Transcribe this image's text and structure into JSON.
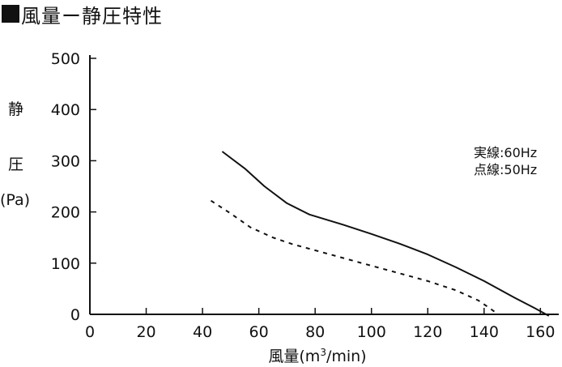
{
  "title": "風量ー静圧特性",
  "chart_data": {
    "type": "line",
    "ylabel": {
      "char1": "静",
      "char2": "圧",
      "unit": "(Pa)"
    },
    "xlabel": {
      "pre": "風量(m",
      "sup": "3",
      "post": "/min)"
    },
    "xlim": [
      0,
      165
    ],
    "ylim": [
      0,
      500
    ],
    "x_ticks": [
      0,
      20,
      40,
      60,
      80,
      100,
      120,
      140,
      160
    ],
    "y_ticks": [
      0,
      100,
      200,
      300,
      400,
      500
    ],
    "legend": [
      "実線:60Hz",
      "点線:50Hz"
    ],
    "series": [
      {
        "name": "実線:60Hz",
        "style": "solid",
        "x": [
          47,
          55,
          62,
          70,
          78,
          90,
          100,
          110,
          120,
          130,
          140,
          150,
          158,
          163
        ],
        "y": [
          318,
          285,
          250,
          217,
          195,
          175,
          157,
          138,
          117,
          92,
          65,
          35,
          12,
          -3
        ]
      },
      {
        "name": "点線:50Hz",
        "style": "dashed",
        "x": [
          43,
          50,
          57,
          65,
          72,
          80,
          90,
          100,
          110,
          120,
          130,
          138,
          142,
          145
        ],
        "y": [
          222,
          197,
          170,
          150,
          137,
          125,
          110,
          95,
          80,
          65,
          47,
          27,
          12,
          0
        ]
      }
    ]
  }
}
